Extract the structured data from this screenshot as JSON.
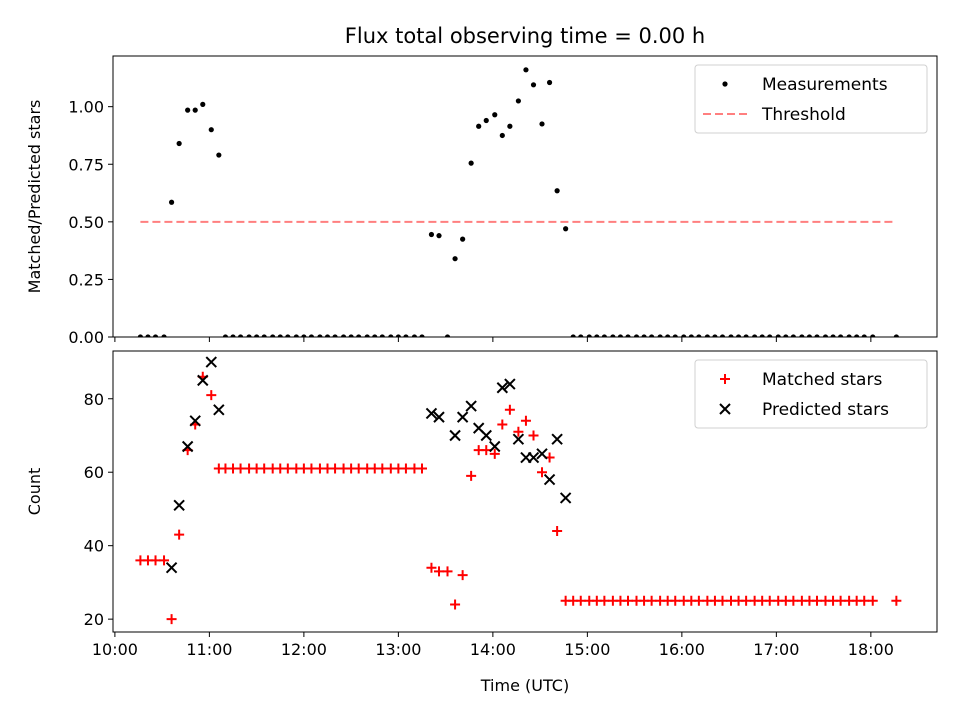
{
  "chart_data": [
    {
      "type": "scatter",
      "title": "Flux total observing time = 0.00 h",
      "ylabel": "Matched/Predicted stars",
      "xlabel": "",
      "x_unit": "hours (UTC, decimal)",
      "xlim": [
        9.98,
        18.7
      ],
      "ylim": [
        0,
        1.22
      ],
      "x_ticks": [
        10,
        11,
        12,
        13,
        14,
        15,
        16,
        17,
        18
      ],
      "x_tick_labels": [
        "",
        "",
        "",
        "",
        "",
        "",
        "",
        "",
        ""
      ],
      "y_ticks": [
        0,
        0.25,
        0.5,
        0.75,
        1.0
      ],
      "y_tick_labels": [
        "0.00",
        "0.25",
        "0.50",
        "0.75",
        "1.00"
      ],
      "legend_position": "top-right",
      "series": [
        {
          "name": "Measurements",
          "marker": "dot",
          "color": "#000000",
          "x": [
            10.27,
            10.35,
            10.43,
            10.52,
            10.6,
            10.68,
            10.77,
            10.85,
            10.93,
            11.02,
            11.1,
            11.17,
            11.25,
            11.33,
            11.42,
            11.5,
            11.58,
            11.67,
            11.75,
            11.83,
            11.92,
            12.0,
            12.08,
            12.17,
            12.25,
            12.33,
            12.42,
            12.5,
            12.58,
            12.67,
            12.75,
            12.83,
            12.92,
            13.0,
            13.08,
            13.17,
            13.25,
            13.35,
            13.43,
            13.52,
            13.6,
            13.68,
            13.77,
            13.85,
            13.93,
            14.02,
            14.1,
            14.18,
            14.27,
            14.35,
            14.43,
            14.52,
            14.6,
            14.68,
            14.77,
            14.85,
            14.93,
            15.02,
            15.1,
            15.18,
            15.27,
            15.35,
            15.43,
            15.52,
            15.6,
            15.68,
            15.77,
            15.85,
            15.93,
            16.02,
            16.1,
            16.18,
            16.27,
            16.35,
            16.43,
            16.52,
            16.6,
            16.68,
            16.77,
            16.85,
            16.93,
            17.02,
            17.1,
            17.18,
            17.27,
            17.35,
            17.43,
            17.52,
            17.6,
            17.68,
            17.77,
            17.85,
            17.93,
            18.02,
            18.27
          ],
          "y": [
            0,
            0,
            0,
            0,
            0.585,
            0.84,
            0.985,
            0.985,
            1.01,
            0.9,
            0.79,
            0,
            0,
            0,
            0,
            0,
            0,
            0,
            0,
            0,
            0,
            0,
            0,
            0,
            0,
            0,
            0,
            0,
            0,
            0,
            0,
            0,
            0,
            0,
            0,
            0,
            0,
            0.445,
            0.44,
            0,
            0.34,
            0.425,
            0.755,
            0.915,
            0.94,
            0.965,
            0.875,
            0.915,
            1.025,
            1.16,
            1.095,
            0.925,
            1.105,
            0.635,
            0.47,
            0,
            0,
            0,
            0,
            0,
            0,
            0,
            0,
            0,
            0,
            0,
            0,
            0,
            0,
            0,
            0,
            0,
            0,
            0,
            0,
            0,
            0,
            0,
            0,
            0,
            0,
            0,
            0,
            0,
            0,
            0,
            0,
            0,
            0,
            0,
            0,
            0,
            0,
            0,
            0
          ]
        },
        {
          "name": "Threshold",
          "marker": "dashed-line",
          "color": "#ff7f7f",
          "x": [
            10.27,
            18.27
          ],
          "y": [
            0.5,
            0.5
          ]
        }
      ]
    },
    {
      "type": "scatter",
      "title": "",
      "ylabel": "Count",
      "xlabel": "Time (UTC)",
      "x_unit": "hours (UTC, decimal)",
      "xlim": [
        9.98,
        18.7
      ],
      "ylim": [
        16.5,
        93
      ],
      "x_ticks": [
        10,
        11,
        12,
        13,
        14,
        15,
        16,
        17,
        18
      ],
      "x_tick_labels": [
        "10:00",
        "11:00",
        "12:00",
        "13:00",
        "14:00",
        "15:00",
        "16:00",
        "17:00",
        "18:00"
      ],
      "y_ticks": [
        20,
        40,
        60,
        80
      ],
      "y_tick_labels": [
        "20",
        "40",
        "60",
        "80"
      ],
      "legend_position": "top-right",
      "series": [
        {
          "name": "Matched stars",
          "marker": "plus",
          "color": "#ff0000",
          "x": [
            10.27,
            10.35,
            10.43,
            10.52,
            10.6,
            10.68,
            10.77,
            10.85,
            10.93,
            11.02,
            11.1,
            11.17,
            11.25,
            11.33,
            11.42,
            11.5,
            11.58,
            11.67,
            11.75,
            11.83,
            11.92,
            12.0,
            12.08,
            12.17,
            12.25,
            12.33,
            12.42,
            12.5,
            12.58,
            12.67,
            12.75,
            12.83,
            12.92,
            13.0,
            13.08,
            13.17,
            13.25,
            13.35,
            13.43,
            13.52,
            13.6,
            13.68,
            13.77,
            13.85,
            13.93,
            14.02,
            14.1,
            14.18,
            14.27,
            14.35,
            14.43,
            14.52,
            14.6,
            14.68,
            14.77,
            14.85,
            14.93,
            15.02,
            15.1,
            15.18,
            15.27,
            15.35,
            15.43,
            15.52,
            15.6,
            15.68,
            15.77,
            15.85,
            15.93,
            16.02,
            16.1,
            16.18,
            16.27,
            16.35,
            16.43,
            16.52,
            16.6,
            16.68,
            16.77,
            16.85,
            16.93,
            17.02,
            17.1,
            17.18,
            17.27,
            17.35,
            17.43,
            17.52,
            17.6,
            17.68,
            17.77,
            17.85,
            17.93,
            18.02,
            18.27
          ],
          "y": [
            36,
            36,
            36,
            36,
            20,
            43,
            66,
            73,
            86,
            81,
            61,
            61,
            61,
            61,
            61,
            61,
            61,
            61,
            61,
            61,
            61,
            61,
            61,
            61,
            61,
            61,
            61,
            61,
            61,
            61,
            61,
            61,
            61,
            61,
            61,
            61,
            61,
            34,
            33,
            33,
            24,
            32,
            59,
            66,
            66,
            65,
            73,
            77,
            71,
            74,
            70,
            60,
            64,
            44,
            25,
            25,
            25,
            25,
            25,
            25,
            25,
            25,
            25,
            25,
            25,
            25,
            25,
            25,
            25,
            25,
            25,
            25,
            25,
            25,
            25,
            25,
            25,
            25,
            25,
            25,
            25,
            25,
            25,
            25,
            25,
            25,
            25,
            25,
            25,
            25,
            25,
            25,
            25,
            25,
            25
          ]
        },
        {
          "name": "Predicted stars",
          "marker": "x",
          "color": "#000000",
          "x": [
            10.6,
            10.68,
            10.77,
            10.85,
            10.93,
            11.02,
            11.1,
            13.35,
            13.43,
            13.6,
            13.68,
            13.77,
            13.85,
            13.93,
            14.02,
            14.1,
            14.18,
            14.27,
            14.35,
            14.43,
            14.52,
            14.6,
            14.68,
            14.77
          ],
          "y": [
            34,
            51,
            67,
            74,
            85,
            90,
            77,
            76,
            75,
            70,
            75,
            78,
            72,
            70,
            67,
            83,
            84,
            69,
            64,
            64,
            65,
            58,
            69,
            53
          ]
        }
      ]
    }
  ]
}
